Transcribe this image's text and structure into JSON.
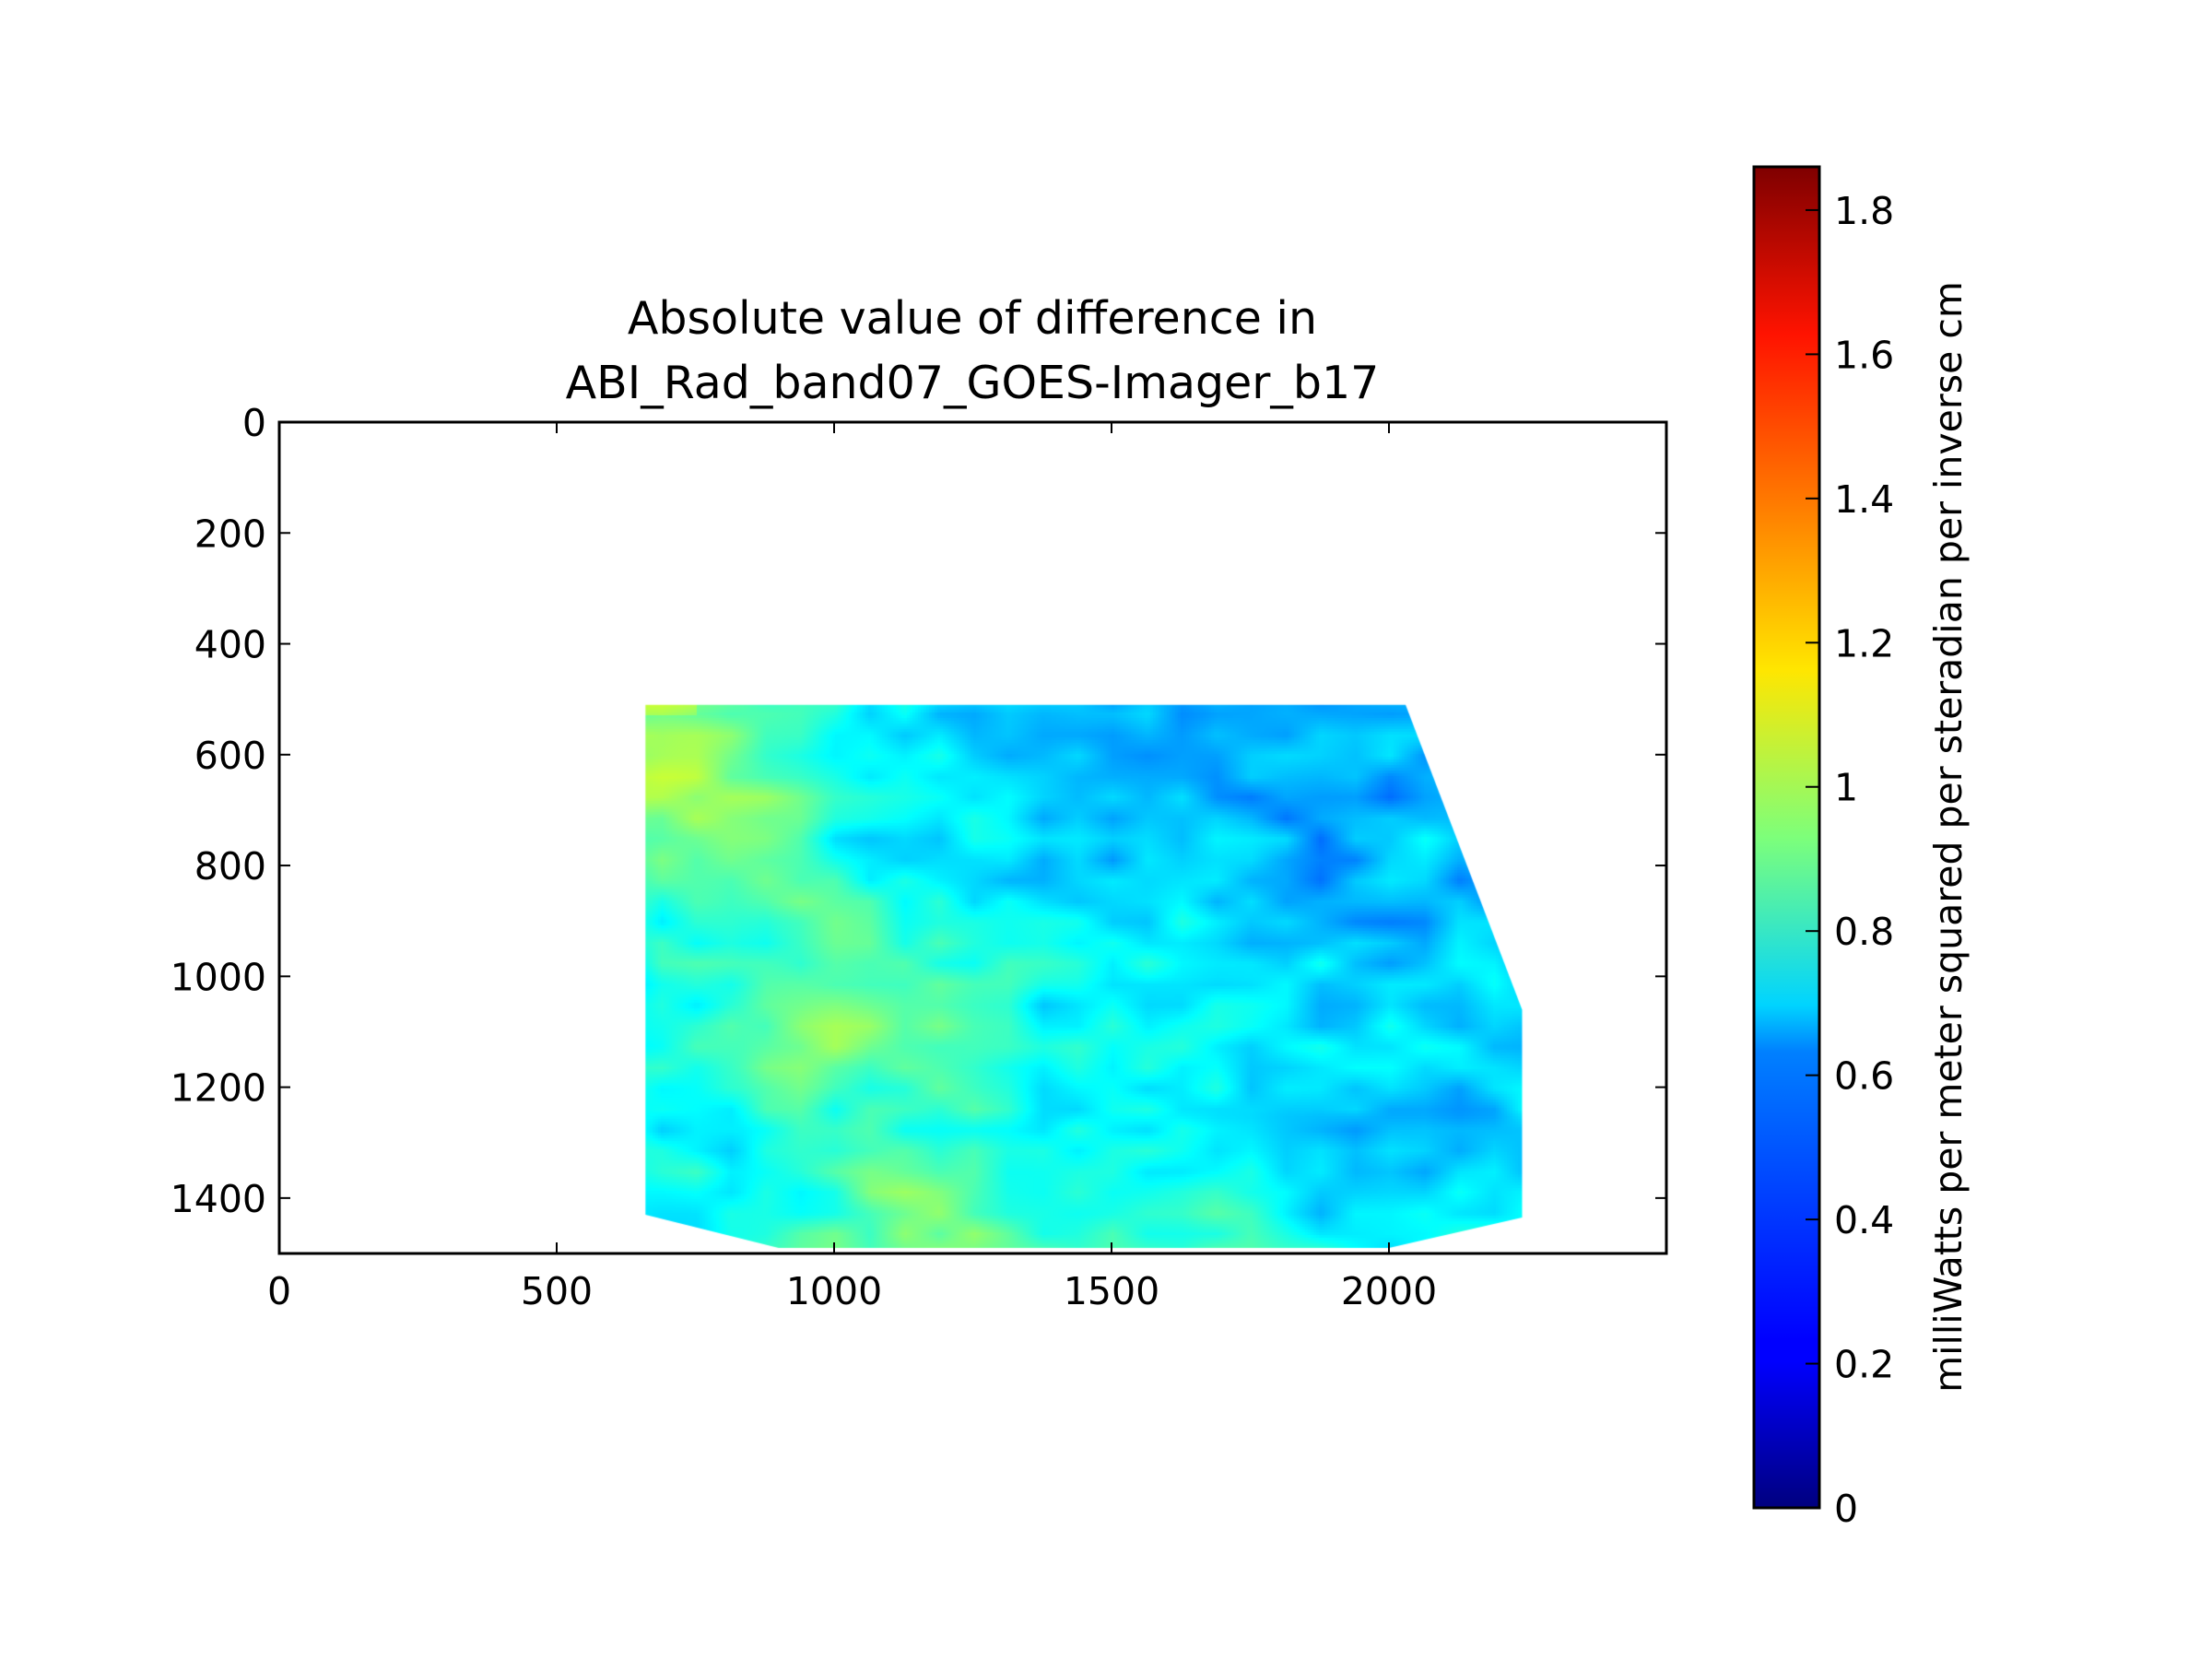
{
  "chart_data": {
    "type": "heatmap",
    "title_lines": [
      "Absolute value of difference in",
      "ABI_Rad_band07_GOES-Imager_b17"
    ],
    "xlabel": "",
    "ylabel": "",
    "xlim": [
      0,
      2500
    ],
    "ylim": [
      1500,
      0
    ],
    "xticks": [
      0,
      500,
      1000,
      1500,
      2000
    ],
    "xtick_labels": [
      "0",
      "500",
      "1000",
      "1500",
      "2000"
    ],
    "yticks": [
      0,
      200,
      400,
      600,
      800,
      1000,
      1200,
      1400
    ],
    "ytick_labels": [
      "0",
      "200",
      "400",
      "600",
      "800",
      "1000",
      "1200",
      "1400"
    ],
    "data_footprint": [
      [
        660,
        510
      ],
      [
        2030,
        510
      ],
      [
        2240,
        1060
      ],
      [
        2240,
        1435
      ],
      [
        2000,
        1490
      ],
      [
        900,
        1490
      ],
      [
        660,
        1430
      ]
    ],
    "colormap": "jet",
    "colorbar": {
      "range": [
        0,
        1.86
      ],
      "ticks": [
        0,
        0.2,
        0.4,
        0.6,
        0.8,
        1,
        1.2,
        1.4,
        1.6,
        1.8
      ],
      "tick_labels": [
        "0",
        "0.2",
        "0.4",
        "0.6",
        "0.8",
        "1",
        "1.2",
        "1.4",
        "1.6",
        "1.8"
      ],
      "label": "milliWatts per meter squared per steradian per inverse cm"
    },
    "grid": false
  }
}
